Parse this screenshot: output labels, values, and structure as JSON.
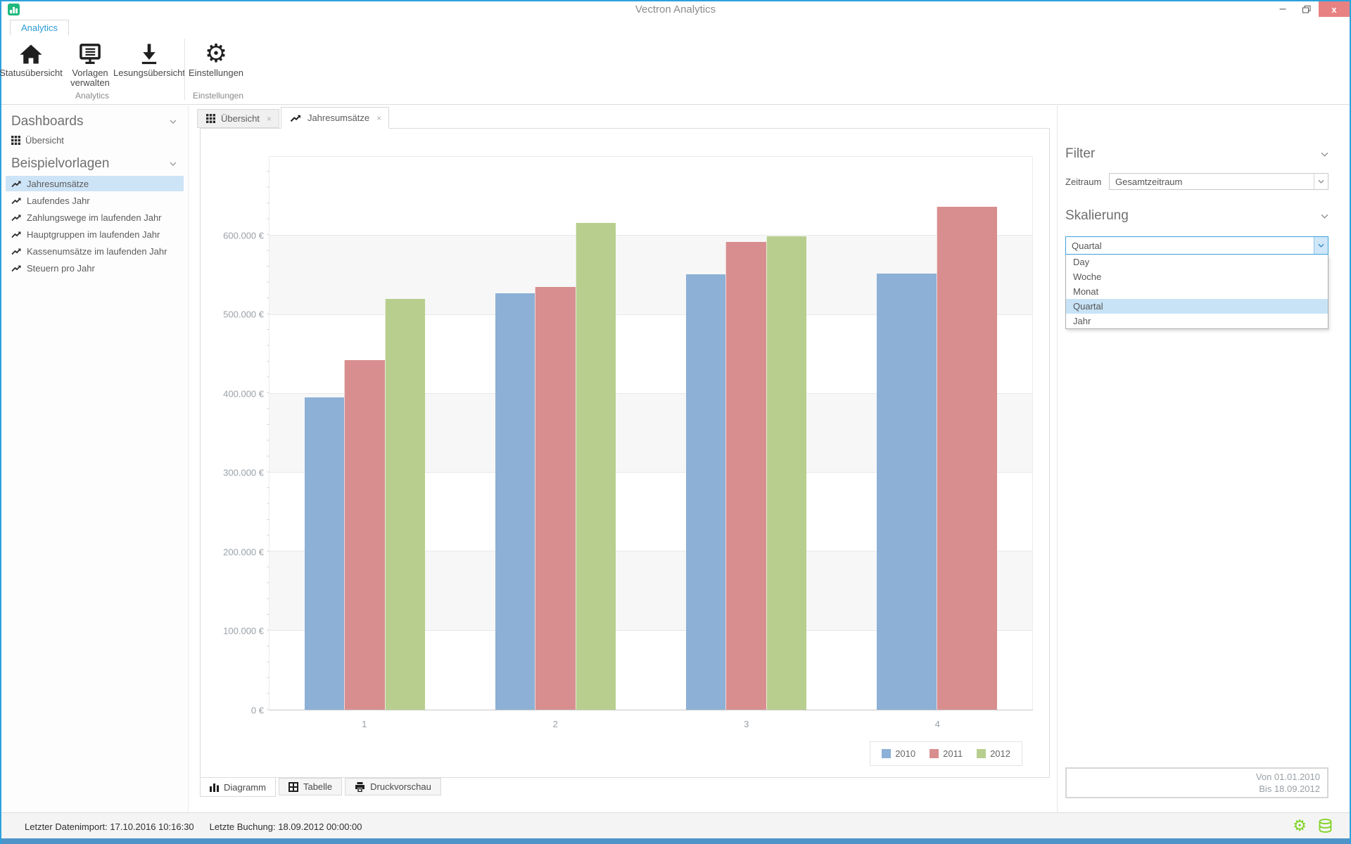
{
  "window": {
    "title": "Vectron Analytics"
  },
  "icons": {
    "close_glyph": "x",
    "minimize_glyph": "–",
    "gear_glyph": "⚙",
    "tab_close_glyph": "×"
  },
  "ribbon": {
    "tab_label": "Analytics",
    "groups": [
      {
        "label": "Analytics",
        "buttons": [
          {
            "label": "Statusübersicht",
            "icon": "home-icon"
          },
          {
            "label": "Vorlagen verwalten",
            "icon": "templates-icon"
          },
          {
            "label": "Lesungsübersicht",
            "icon": "download-icon"
          }
        ]
      },
      {
        "label": "Einstellungen",
        "buttons": [
          {
            "label": "Einstellungen",
            "icon": "gear-icon"
          }
        ]
      }
    ]
  },
  "sidebar": {
    "sections": [
      {
        "title": "Dashboards",
        "items": [
          {
            "label": "Übersicht",
            "icon": "grid-icon",
            "selected": false
          }
        ]
      },
      {
        "title": "Beispielvorlagen",
        "items": [
          {
            "label": "Jahresumsätze",
            "icon": "trend-icon",
            "selected": true
          },
          {
            "label": "Laufendes Jahr",
            "icon": "trend-icon",
            "selected": false
          },
          {
            "label": "Zahlungswege im laufenden Jahr",
            "icon": "trend-icon",
            "selected": false
          },
          {
            "label": "Hauptgruppen im laufenden Jahr",
            "icon": "trend-icon",
            "selected": false
          },
          {
            "label": "Kassenumsätze im laufenden Jahr",
            "icon": "trend-icon",
            "selected": false
          },
          {
            "label": "Steuern pro Jahr",
            "icon": "trend-icon",
            "selected": false
          }
        ]
      }
    ]
  },
  "doc_tabs": [
    {
      "label": "Übersicht",
      "icon": "grid-icon",
      "active": false
    },
    {
      "label": "Jahresumsätze",
      "icon": "trend-icon",
      "active": true
    }
  ],
  "view_tabs": [
    {
      "label": "Diagramm",
      "icon": "bar-chart-icon",
      "active": true
    },
    {
      "label": "Tabelle",
      "icon": "table-icon",
      "active": false
    },
    {
      "label": "Druckvorschau",
      "icon": "printer-icon",
      "active": false
    }
  ],
  "filter_panel": {
    "filter_title": "Filter",
    "zeitraum_label": "Zeitraum",
    "zeitraum_value": "Gesamtzeitraum",
    "skalierung_title": "Skalierung",
    "skalierung_value": "Quartal",
    "skalierung_options": [
      "Day",
      "Woche",
      "Monat",
      "Quartal",
      "Jahr"
    ],
    "selected_option": "Quartal",
    "range_from": "Von 01.01.2010",
    "range_to": "Bis 18.09.2012"
  },
  "statusbar": {
    "import_text": "Letzter Datenimport: 17.10.2016 10:16:30",
    "booking_text": "Letzte Buchung: 18.09.2012 00:00:00"
  },
  "colors": {
    "accent_blue": "#2da1dd",
    "close_button": "#e88181",
    "selected_item_bg": "#cde4f7",
    "status_icon_green": "#7ed321",
    "app_icon_green": "#1fb97f"
  },
  "chart_data": {
    "type": "bar",
    "title": "",
    "xlabel": "",
    "ylabel": "",
    "categories": [
      "1",
      "2",
      "3",
      "4"
    ],
    "series": [
      {
        "name": "2010",
        "color": "#8cb0d6",
        "values": [
          395000,
          527000,
          551000,
          552000
        ]
      },
      {
        "name": "2011",
        "color": "#d88e8f",
        "values": [
          443000,
          535000,
          592000,
          637000
        ]
      },
      {
        "name": "2012",
        "color": "#b8ce8e",
        "values": [
          520000,
          616000,
          599000,
          null
        ]
      }
    ],
    "ylim": [
      0,
      700000
    ],
    "ytick_step": 100000,
    "ytick_labels": [
      "0 €",
      "100.000 €",
      "200.000 €",
      "300.000 €",
      "400.000 €",
      "500.000 €",
      "600.000 €"
    ],
    "grid": true,
    "band_color": "#f7f7f7",
    "legend_position": "bottom-right"
  }
}
